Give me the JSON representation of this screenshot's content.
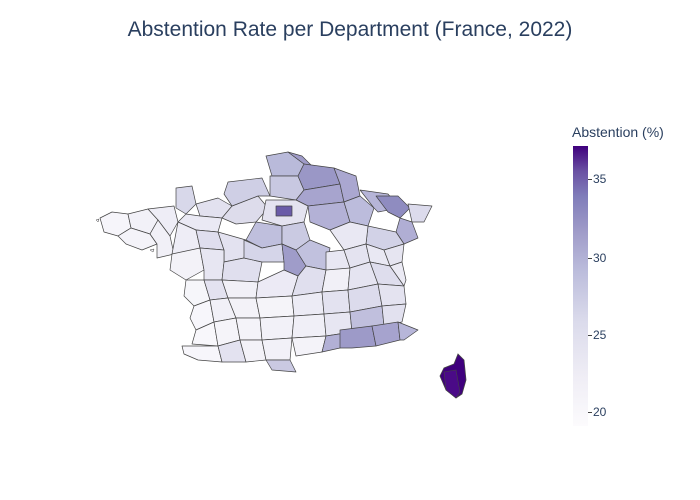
{
  "title": "Abstention Rate per Department (France, 2022)",
  "colorbar": {
    "title": "Abstention (%)",
    "range": [
      19,
      37.5
    ],
    "ticks": [
      "20",
      "25",
      "30",
      "35"
    ],
    "colorscale": [
      "#fcfbfd",
      "#efedf5",
      "#dadaeb",
      "#bcbddc",
      "#9e9ac8",
      "#807dba",
      "#6a51a3",
      "#3f007d"
    ]
  },
  "map": {
    "region": "France (metropolitan departments)",
    "border_color": "#444444",
    "highlight": {
      "region": "Corsica",
      "level": "highest"
    }
  }
}
